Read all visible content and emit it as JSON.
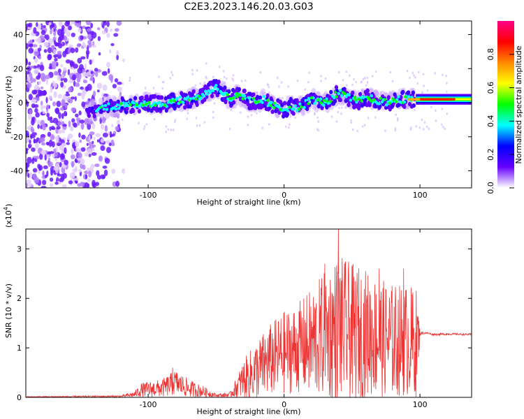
{
  "figure_title": "C2E3.2023.146.20.03.G03",
  "chart_data": [
    {
      "type": "heatmap",
      "xlabel": "Height of straight line (km)",
      "ylabel": "Frequency (Hz)",
      "xlim": [
        -190,
        138
      ],
      "ylim": [
        -50,
        48
      ],
      "xticks": [
        -100,
        0,
        100
      ],
      "yticks": [
        -40,
        -20,
        0,
        20,
        40
      ],
      "colorbar": {
        "label": "Normalized spectral amplitude",
        "range": [
          0,
          1
        ],
        "ticks": [
          "0.0",
          "0.2",
          "0.4",
          "0.6",
          "0.8"
        ],
        "tick_values": [
          0,
          0.2,
          0.4,
          0.6,
          0.8
        ],
        "colors": [
          "#ffffff",
          "#6600ff",
          "#0000ff",
          "#00ffff",
          "#00ff00",
          "#ffff00",
          "#ff8800",
          "#ff0000",
          "#ff0088"
        ]
      },
      "ridge": {
        "x": [
          -140,
          -130,
          -120,
          -110,
          -100,
          -90,
          -80,
          -70,
          -60,
          -55,
          -50,
          -45,
          -40,
          -35,
          -30,
          -25,
          -20,
          -15,
          -10,
          -5,
          0,
          5,
          10,
          15,
          20,
          25,
          30,
          35,
          40,
          45,
          50,
          55,
          60,
          65,
          70,
          75,
          80,
          85,
          90,
          95,
          100,
          110,
          120,
          130,
          138
        ],
        "freq": [
          -5,
          -2,
          -2,
          -1,
          0,
          -1,
          1,
          2,
          4,
          7,
          9,
          6,
          2,
          4,
          3,
          1,
          0,
          2,
          -1,
          -3,
          -4,
          -2,
          -3,
          -1,
          2,
          1,
          0,
          2,
          6,
          4,
          2,
          1,
          3,
          2,
          1,
          0,
          1,
          2,
          2,
          2,
          2,
          2,
          2,
          2,
          2
        ]
      }
    },
    {
      "type": "line",
      "xlabel": "Height of straight line (km)",
      "ylabel": "SNR (10 * v/v)",
      "y_multiplier": "(x10",
      "y_multiplier_exp": "4",
      "y_multiplier_close": ")",
      "xlim": [
        -190,
        138
      ],
      "ylim": [
        0,
        3.4
      ],
      "xticks": [
        -100,
        0,
        100
      ],
      "yticks": [
        0,
        1,
        2,
        3
      ],
      "color": "#ee3333",
      "envelope": {
        "x": [
          -190,
          -120,
          -110,
          -105,
          -100,
          -90,
          -80,
          -70,
          -60,
          -50,
          -40,
          -35,
          -30,
          -20,
          -10,
          0,
          10,
          20,
          30,
          40,
          50,
          60,
          70,
          80,
          90,
          98,
          100,
          101,
          105,
          110,
          120,
          138
        ],
        "mean": [
          0.01,
          0.02,
          0.06,
          0.15,
          0.16,
          0.18,
          0.3,
          0.18,
          0.12,
          0.04,
          0.05,
          0.2,
          0.35,
          0.55,
          0.75,
          0.9,
          1.0,
          1.1,
          1.25,
          1.4,
          1.3,
          1.3,
          1.2,
          1.15,
          1.15,
          1.1,
          1.28,
          1.3,
          1.3,
          1.27,
          1.28,
          1.27
        ],
        "amp": [
          0.01,
          0.02,
          0.06,
          0.14,
          0.16,
          0.18,
          0.26,
          0.18,
          0.12,
          0.03,
          0.05,
          0.2,
          0.4,
          0.6,
          0.75,
          0.85,
          0.9,
          1.1,
          1.3,
          1.5,
          1.4,
          1.3,
          1.2,
          1.15,
          1.15,
          1.1,
          0.04,
          0.03,
          0.02,
          0.02,
          0.02,
          0.02
        ]
      },
      "peaks": [
        {
          "x": 40,
          "y": 3.4
        },
        {
          "x": 30,
          "y": 2.7
        },
        {
          "x": 55,
          "y": 2.6
        },
        {
          "x": 70,
          "y": 2.6
        },
        {
          "x": 88,
          "y": 2.6
        },
        {
          "x": -82,
          "y": 0.6
        }
      ]
    }
  ]
}
